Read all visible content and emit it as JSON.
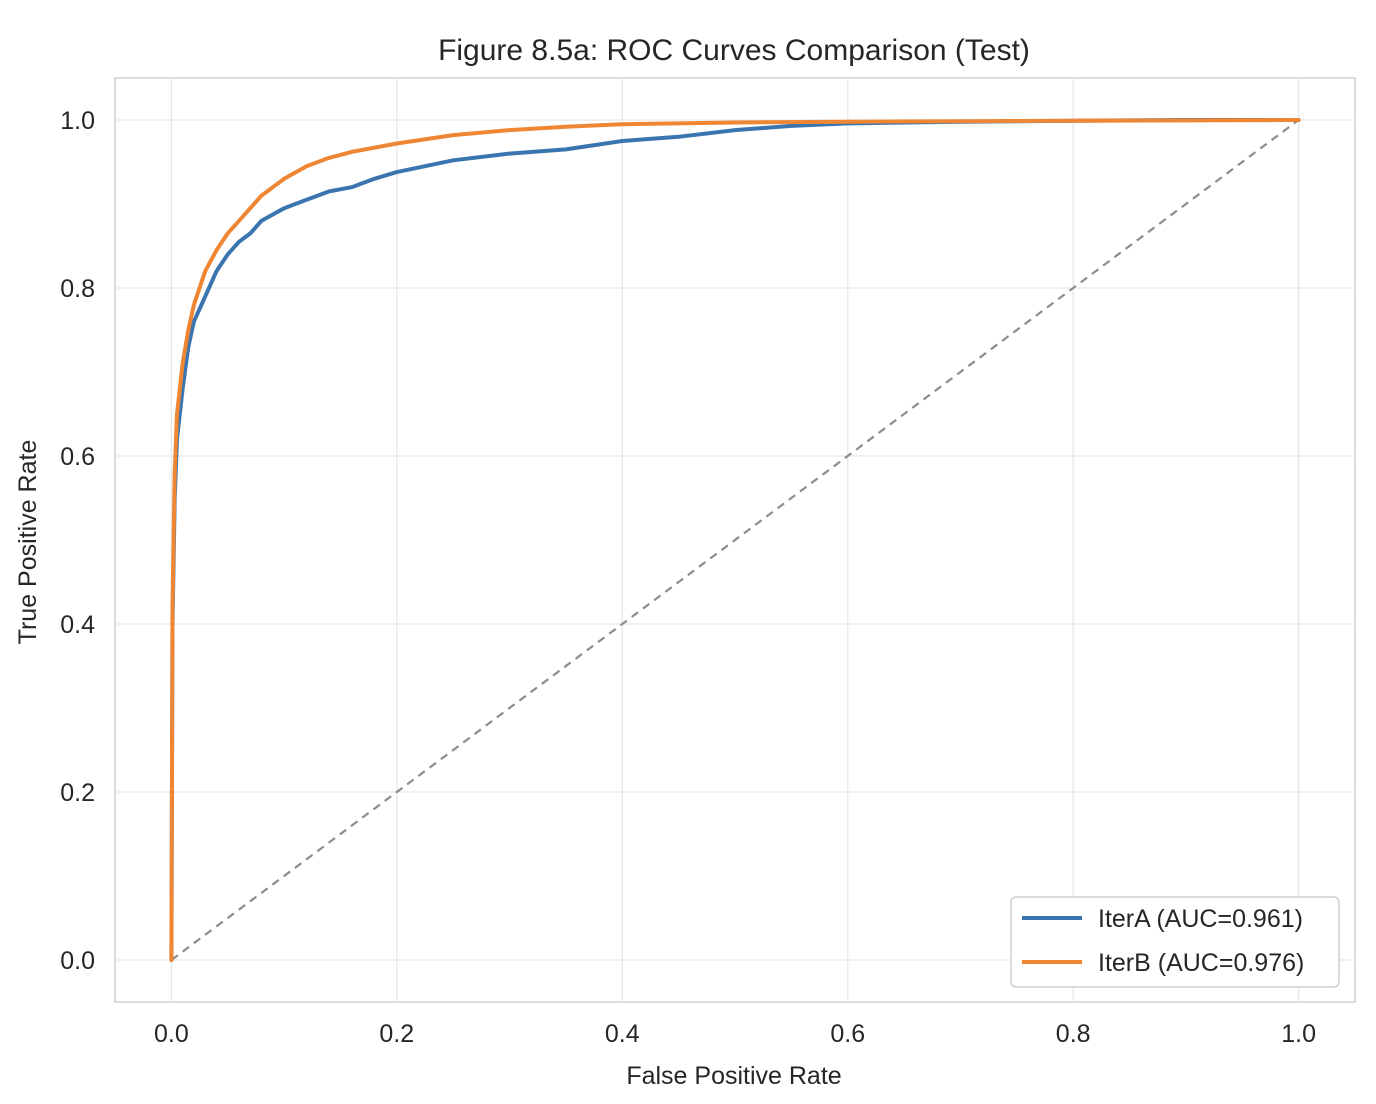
{
  "chart_data": {
    "type": "line",
    "title": "Figure 8.5a: ROC Curves Comparison (Test)",
    "xlabel": "False Positive Rate",
    "ylabel": "True Positive Rate",
    "xlim": [
      -0.05,
      1.05
    ],
    "ylim": [
      -0.05,
      1.05
    ],
    "x_ticks": [
      0.0,
      0.2,
      0.4,
      0.6,
      0.8,
      1.0
    ],
    "y_ticks": [
      0.0,
      0.2,
      0.4,
      0.6,
      0.8,
      1.0
    ],
    "x_tick_labels": [
      "0.0",
      "0.2",
      "0.4",
      "0.6",
      "0.8",
      "1.0"
    ],
    "y_tick_labels": [
      "0.0",
      "0.2",
      "0.4",
      "0.6",
      "0.8",
      "1.0"
    ],
    "grid": true,
    "legend_position": "lower-right",
    "series": [
      {
        "name": "IterA (AUC=0.961)",
        "color": "#3a75b0",
        "points": [
          [
            0,
            0
          ],
          [
            0.001,
            0.4
          ],
          [
            0.003,
            0.55
          ],
          [
            0.005,
            0.62
          ],
          [
            0.01,
            0.68
          ],
          [
            0.015,
            0.73
          ],
          [
            0.02,
            0.76
          ],
          [
            0.03,
            0.79
          ],
          [
            0.04,
            0.82
          ],
          [
            0.05,
            0.84
          ],
          [
            0.06,
            0.855
          ],
          [
            0.07,
            0.865
          ],
          [
            0.08,
            0.88
          ],
          [
            0.1,
            0.895
          ],
          [
            0.12,
            0.905
          ],
          [
            0.14,
            0.915
          ],
          [
            0.16,
            0.92
          ],
          [
            0.18,
            0.93
          ],
          [
            0.2,
            0.938
          ],
          [
            0.25,
            0.952
          ],
          [
            0.3,
            0.96
          ],
          [
            0.35,
            0.965
          ],
          [
            0.4,
            0.975
          ],
          [
            0.45,
            0.98
          ],
          [
            0.5,
            0.988
          ],
          [
            0.55,
            0.993
          ],
          [
            0.6,
            0.996
          ],
          [
            0.7,
            0.998
          ],
          [
            0.8,
            0.999
          ],
          [
            0.9,
            1.0
          ],
          [
            1.0,
            1.0
          ]
        ]
      },
      {
        "name": "IterB (AUC=0.976)",
        "color": "#ef8633",
        "points": [
          [
            0,
            0
          ],
          [
            0.001,
            0.42
          ],
          [
            0.003,
            0.58
          ],
          [
            0.005,
            0.65
          ],
          [
            0.01,
            0.71
          ],
          [
            0.015,
            0.75
          ],
          [
            0.02,
            0.78
          ],
          [
            0.03,
            0.82
          ],
          [
            0.04,
            0.845
          ],
          [
            0.05,
            0.865
          ],
          [
            0.06,
            0.88
          ],
          [
            0.07,
            0.895
          ],
          [
            0.08,
            0.91
          ],
          [
            0.1,
            0.93
          ],
          [
            0.12,
            0.945
          ],
          [
            0.14,
            0.955
          ],
          [
            0.16,
            0.962
          ],
          [
            0.2,
            0.972
          ],
          [
            0.25,
            0.982
          ],
          [
            0.3,
            0.988
          ],
          [
            0.35,
            0.992
          ],
          [
            0.4,
            0.995
          ],
          [
            0.5,
            0.997
          ],
          [
            0.6,
            0.998
          ],
          [
            0.8,
            0.999
          ],
          [
            1.0,
            1.0
          ]
        ]
      }
    ],
    "reference_line": {
      "points": [
        [
          0,
          0
        ],
        [
          1,
          1
        ]
      ],
      "color": "#8c8c8c"
    }
  }
}
